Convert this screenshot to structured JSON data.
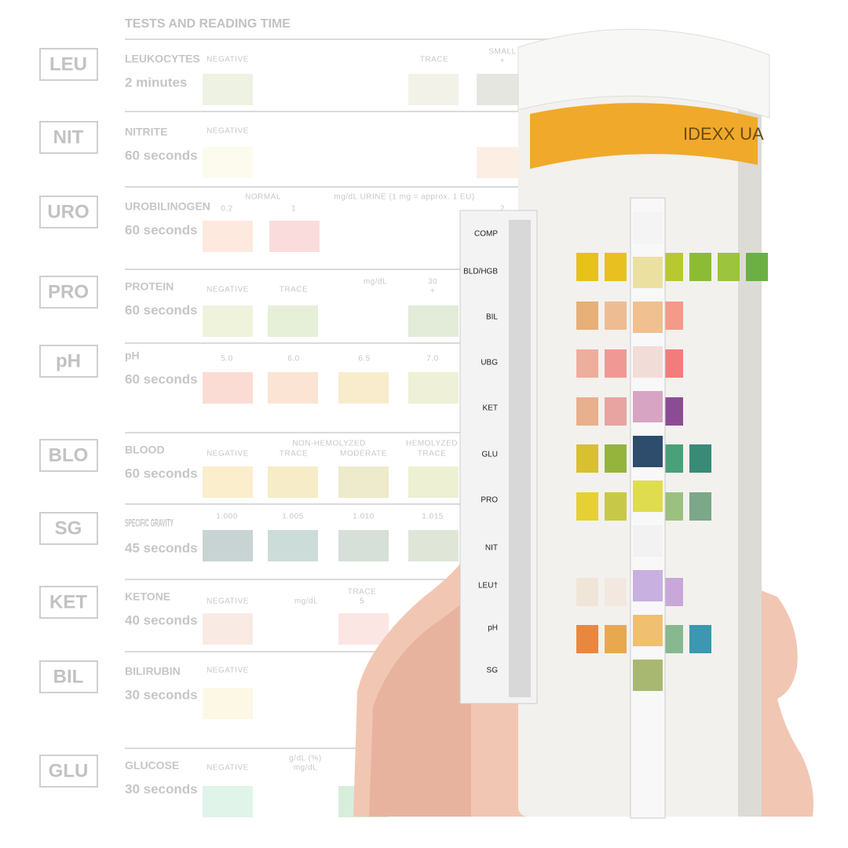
{
  "header": {
    "title": "TESTS AND READING TIME"
  },
  "rows": [
    {
      "code": "LEU",
      "name": "LEUKOCYTES",
      "time": "2 minutes",
      "labels": [
        "NEGATIVE",
        "TRACE",
        "SMALL",
        "+"
      ]
    },
    {
      "code": "NIT",
      "name": "NITRITE",
      "time": "60 seconds",
      "labels": [
        "NEGATIVE"
      ]
    },
    {
      "code": "URO",
      "name": "UROBILINOGEN",
      "time": "60 seconds",
      "labels": [
        "NORMAL",
        "0.2",
        "1",
        "mg/dL URINE (1 mg = approx. 1 EU)",
        "2"
      ]
    },
    {
      "code": "PRO",
      "name": "PROTEIN",
      "time": "60 seconds",
      "labels": [
        "NEGATIVE",
        "TRACE",
        "mg/dL",
        "30",
        "+"
      ]
    },
    {
      "code": "pH",
      "name": "pH",
      "time": "60 seconds",
      "labels": [
        "5.0",
        "6.0",
        "6.5",
        "7.0"
      ]
    },
    {
      "code": "BLO",
      "name": "BLOOD",
      "time": "60 seconds",
      "labels": [
        "NEGATIVE",
        "NON-HEMOLYZED",
        "TRACE",
        "MODERATE",
        "HEMOLYZED",
        "TRACE"
      ]
    },
    {
      "code": "SG",
      "name": "SPECIFIC GRAVITY",
      "time": "45 seconds",
      "labels": [
        "1.000",
        "1.005",
        "1.010",
        "1.015"
      ]
    },
    {
      "code": "KET",
      "name": "KETONE",
      "time": "40 seconds",
      "labels": [
        "NEGATIVE",
        "mg/dL",
        "TRACE",
        "5"
      ]
    },
    {
      "code": "BIL",
      "name": "BILIRUBIN",
      "time": "30 seconds",
      "labels": [
        "NEGATIVE"
      ]
    },
    {
      "code": "GLU",
      "name": "GLUCOSE",
      "time": "30 seconds",
      "labels": [
        "NEGATIVE",
        "g/dL (%)",
        "mg/dL"
      ]
    }
  ],
  "bottle": {
    "brand": "IDEXX UA",
    "strip_labels": [
      "COMP",
      "BLD/HGB",
      "BIL",
      "UBG",
      "KET",
      "GLU",
      "PRO",
      "NIT",
      "LEU†",
      "pH",
      "SG"
    ]
  }
}
